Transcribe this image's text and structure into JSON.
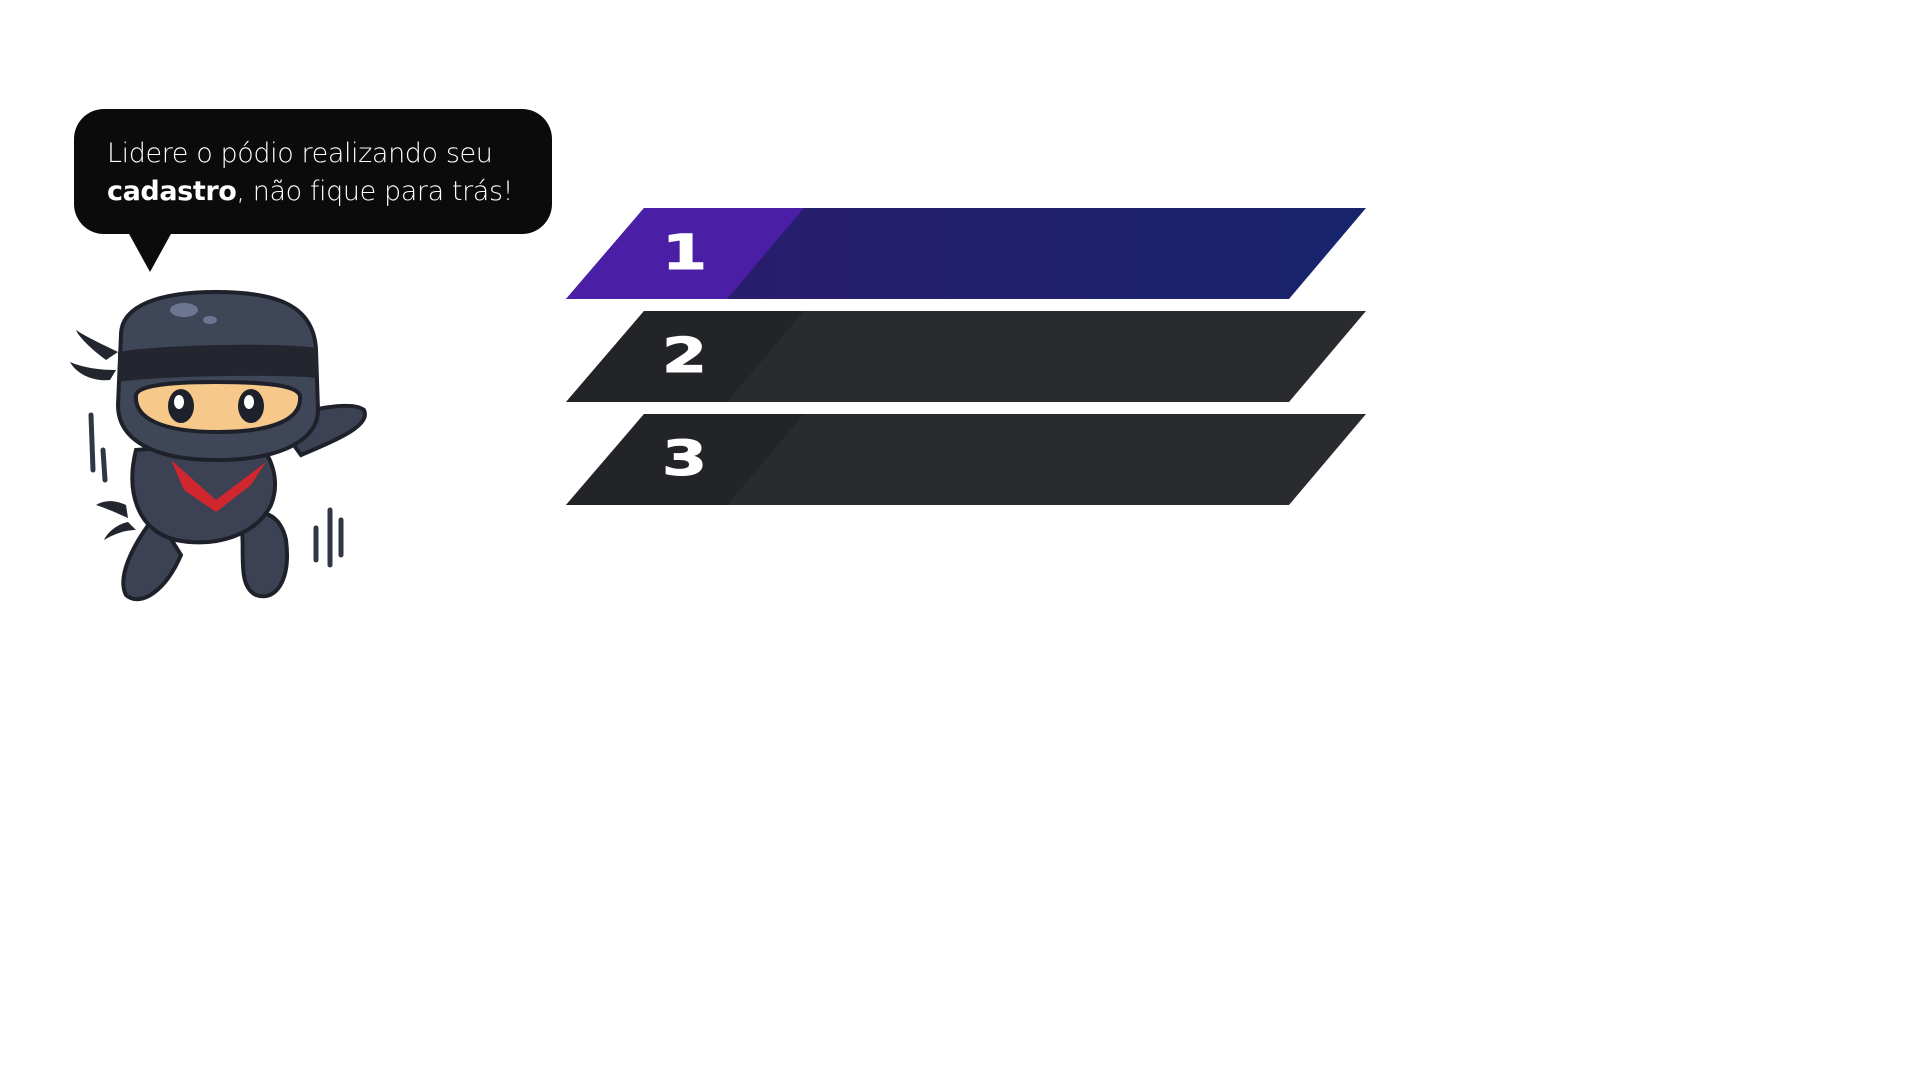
{
  "bubble": {
    "line1": "Lidere o pódio realizando seu",
    "line2_bold": "cadastro",
    "line2_rest": ", não fique para trás!"
  },
  "mascot": {
    "icon": "ninja-mascot-icon"
  },
  "podium": {
    "items": [
      {
        "rank": "1",
        "highlighted": true
      },
      {
        "rank": "2",
        "highlighted": false
      },
      {
        "rank": "3",
        "highlighted": false
      }
    ]
  },
  "colors": {
    "highlight_start": "#4a1fa6",
    "highlight_end": "#17246b",
    "dark_bar": "#2a2b2e",
    "dark_bar_tab": "#232427",
    "bubble_bg": "#0b0b0c"
  }
}
